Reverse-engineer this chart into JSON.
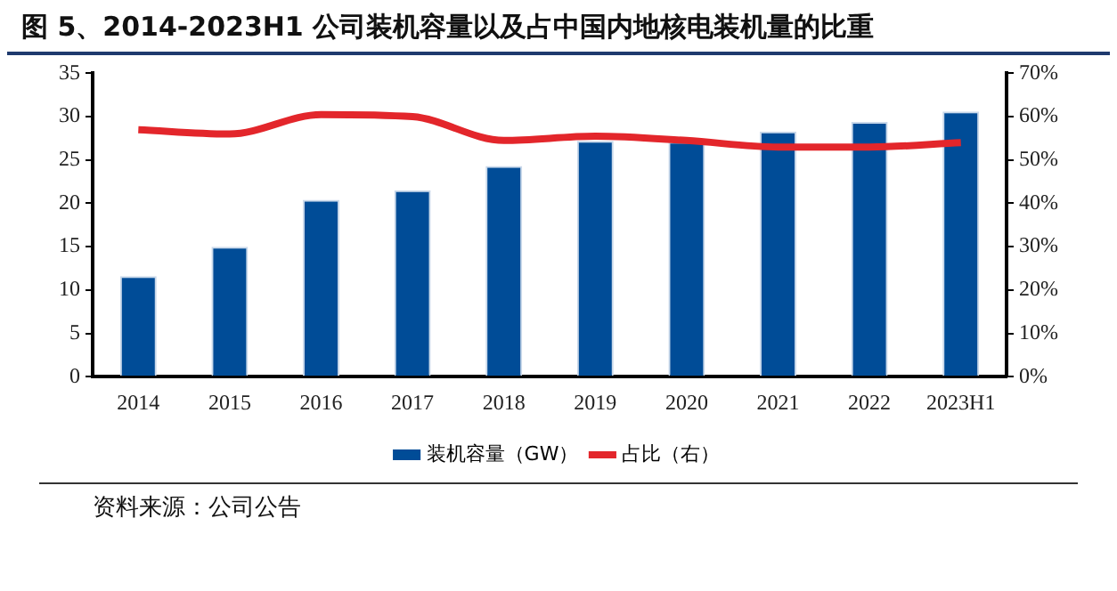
{
  "chart_data": {
    "type": "bar",
    "title": "图 5、2014-2023H1 公司装机容量以及占中国内地核电装机量的比重",
    "categories": [
      "2014",
      "2015",
      "2016",
      "2017",
      "2018",
      "2019",
      "2020",
      "2021",
      "2022",
      "2023H1"
    ],
    "series": [
      {
        "name": "装机容量（GW）",
        "color": "#004c97",
        "values": [
          11.6,
          15.0,
          20.4,
          21.5,
          24.3,
          27.2,
          27.1,
          28.3,
          29.4,
          30.6
        ]
      },
      {
        "name": "占比（右）",
        "type": "line",
        "axis": "y2",
        "color": "#e3262b",
        "values": [
          57,
          56,
          60.5,
          60,
          54.5,
          55.5,
          54.5,
          53,
          53,
          54
        ]
      }
    ],
    "ylim": [
      0,
      35
    ],
    "yticks": [
      0,
      5,
      10,
      15,
      20,
      25,
      30,
      35
    ],
    "y2lim": [
      0,
      70
    ],
    "y2ticks": [
      {
        "value": 0,
        "label": "0%"
      },
      {
        "value": 10,
        "label": "10%"
      },
      {
        "value": 20,
        "label": "20%"
      },
      {
        "value": 30,
        "label": "30%"
      },
      {
        "value": 40,
        "label": "40%"
      },
      {
        "value": 50,
        "label": "50%"
      },
      {
        "value": 60,
        "label": "60%"
      },
      {
        "value": 70,
        "label": "70%"
      }
    ],
    "grid": false,
    "legend": "bottom",
    "marker": "none",
    "annotations": [
      "资料来源：公司公告"
    ]
  }
}
